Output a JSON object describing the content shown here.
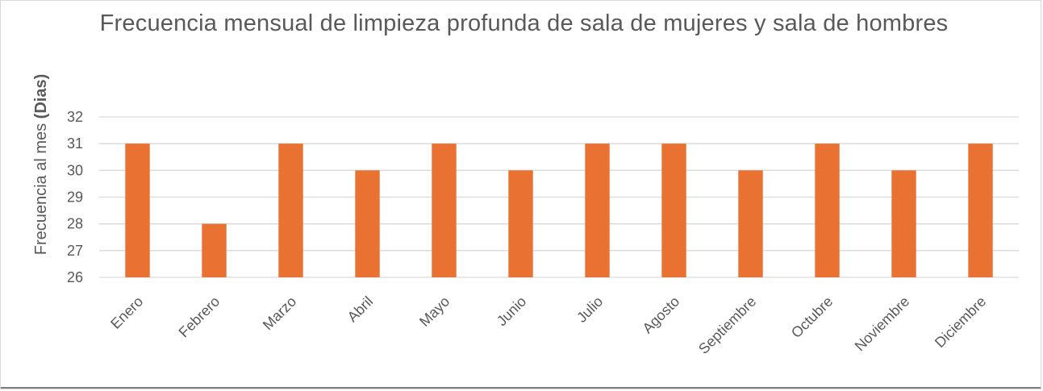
{
  "chart_data": {
    "type": "bar",
    "title": "Frecuencia  mensual de limpieza profunda de sala de mujeres y sala de hombres",
    "xlabel": "",
    "ylabel": "Frecuencia al mes ",
    "ylabel_bold": "(Dias)",
    "categories": [
      "Enero",
      "Febrero",
      "Marzo",
      "Abril",
      "Mayo",
      "Junio",
      "Julio",
      "Agosto",
      "Septiembre",
      "Octubre",
      "Noviembre",
      "Diciembre"
    ],
    "values": [
      31,
      28,
      31,
      30,
      31,
      30,
      31,
      31,
      30,
      31,
      30,
      31
    ],
    "ylim": [
      26,
      32
    ],
    "yticks": [
      "26",
      "27",
      "28",
      "29",
      "30",
      "31",
      "32"
    ],
    "grid": true,
    "legend": "none",
    "bar_color": "#E97132",
    "grid_color": "#d9d9d9",
    "text_color": "#595959"
  }
}
